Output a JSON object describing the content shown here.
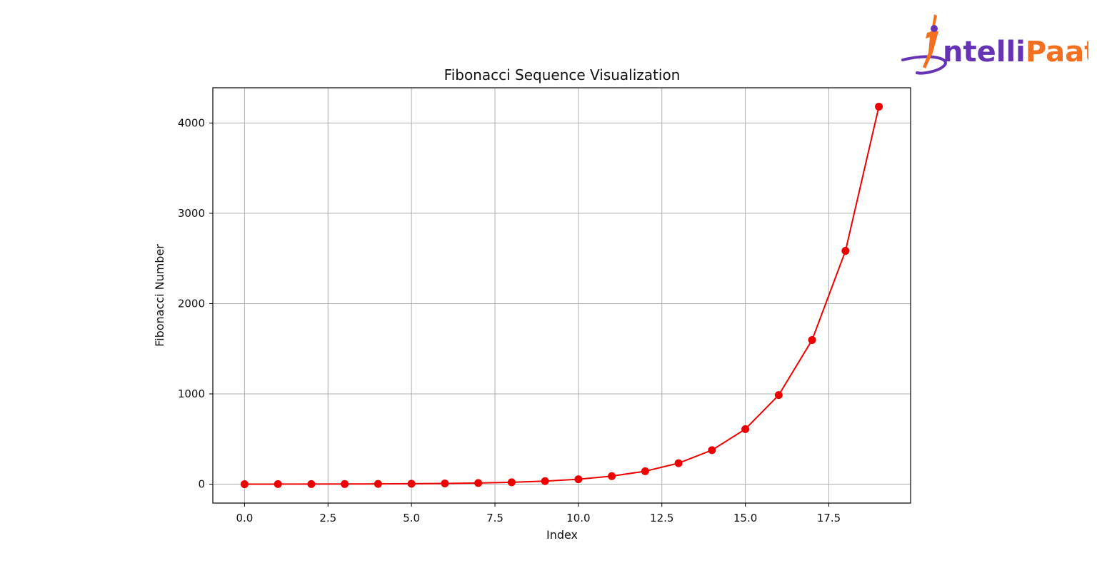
{
  "brand": {
    "name_part1": "ntelli",
    "name_part2": "Paat",
    "colors": {
      "orange": "#f37021",
      "purple": "#6633b5"
    }
  },
  "chart_data": {
    "type": "line",
    "title": "Fibonacci Sequence Visualization",
    "xlabel": "Index",
    "ylabel": "Fibonacci Number",
    "x": [
      0,
      1,
      2,
      3,
      4,
      5,
      6,
      7,
      8,
      9,
      10,
      11,
      12,
      13,
      14,
      15,
      16,
      17,
      18,
      19
    ],
    "series": [
      {
        "values": [
          0,
          1,
          1,
          2,
          3,
          5,
          8,
          13,
          21,
          34,
          55,
          89,
          144,
          233,
          377,
          610,
          987,
          1597,
          2584,
          4181
        ],
        "color": "#ee0000",
        "marker": "circle"
      }
    ],
    "xlim": [
      -0.95,
      19.95
    ],
    "ylim": [
      -209,
      4390
    ],
    "xticks": [
      0,
      2.5,
      5,
      7.5,
      10,
      12.5,
      15,
      17.5
    ],
    "xtick_labels": [
      "0.0",
      "2.5",
      "5.0",
      "7.5",
      "10.0",
      "12.5",
      "15.0",
      "17.5"
    ],
    "yticks": [
      0,
      1000,
      2000,
      3000,
      4000
    ],
    "ytick_labels": [
      "0",
      "1000",
      "2000",
      "3000",
      "4000"
    ],
    "grid": true,
    "legend": false
  }
}
